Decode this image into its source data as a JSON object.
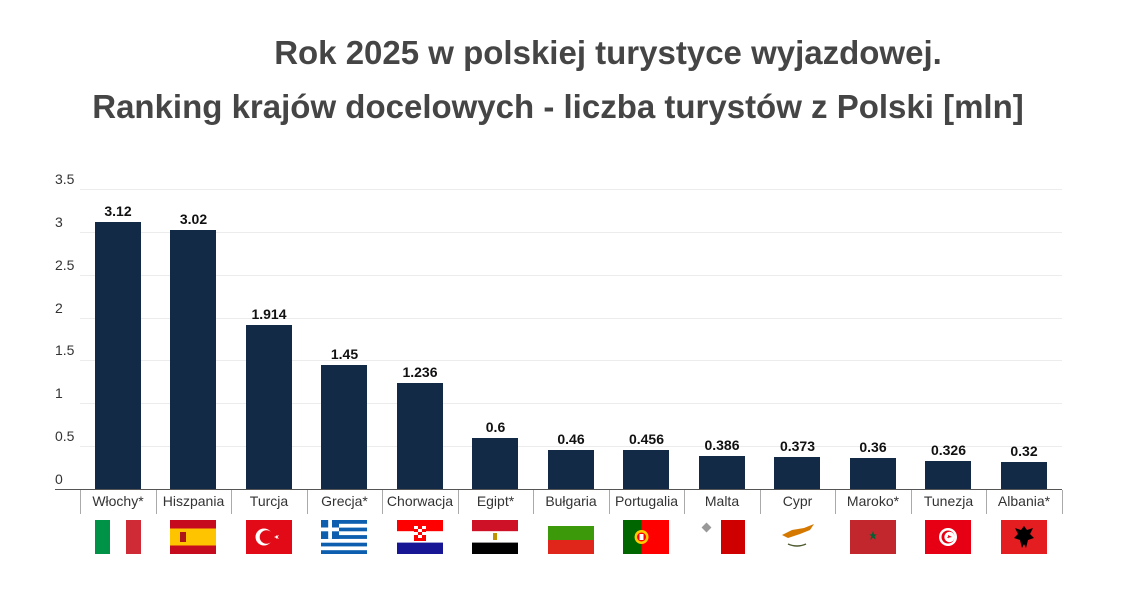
{
  "title": {
    "line1": "Rok 2025 w polskiej turystyce wyjazdowej.",
    "line2": "Ranking krajów docelowych - liczba turystów z Polski [mln]"
  },
  "chart_data": {
    "type": "bar",
    "title": "Rok 2025 w polskiej turystyce wyjazdowej. Ranking krajów docelowych - liczba turystów z Polski [mln]",
    "xlabel": "",
    "ylabel": "",
    "ylim": [
      0,
      3.5
    ],
    "yticks": [
      "0",
      "0.5",
      "1",
      "1.5",
      "2",
      "2.5",
      "3",
      "3.5"
    ],
    "grid": true,
    "legend": "none",
    "bar_color": "#122a45",
    "categories": [
      "Włochy*",
      "Hiszpania",
      "Turcja",
      "Grecja*",
      "Chorwacja",
      "Egipt*",
      "Bułgaria",
      "Portugalia",
      "Malta",
      "Cypr",
      "Maroko*",
      "Tunezja",
      "Albania*"
    ],
    "values": [
      3.12,
      3.02,
      1.914,
      1.45,
      1.236,
      0.6,
      0.46,
      0.456,
      0.386,
      0.373,
      0.36,
      0.326,
      0.32
    ],
    "value_labels": [
      "3.12",
      "3.02",
      "1.914",
      "1.45",
      "1.236",
      "0.6",
      "0.46",
      "0.456",
      "0.386",
      "0.373",
      "0.36",
      "0.326",
      "0.32"
    ],
    "flags": [
      "italy-flag",
      "spain-flag",
      "turkey-flag",
      "greece-flag",
      "croatia-flag",
      "egypt-flag",
      "bulgaria-flag",
      "portugal-flag",
      "malta-flag",
      "cyprus-flag",
      "morocco-flag",
      "tunisia-flag",
      "albania-flag"
    ]
  }
}
